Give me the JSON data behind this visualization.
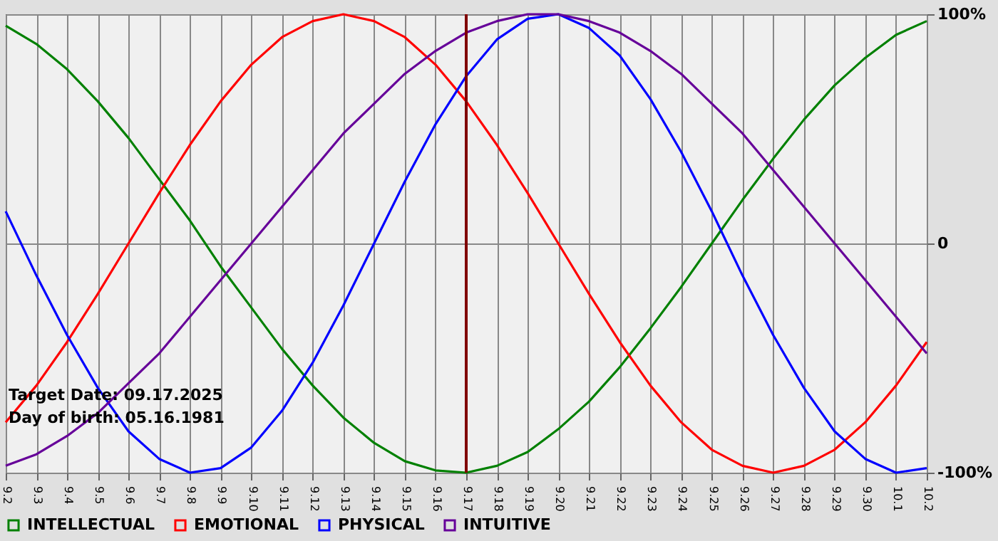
{
  "chart_data": {
    "type": "line",
    "categories": [
      "9.2",
      "9.3",
      "9.4",
      "9.5",
      "9.6",
      "9.7",
      "9.8",
      "9.9",
      "9.10",
      "9.11",
      "9.12",
      "9.13",
      "9.14",
      "9.15",
      "9.16",
      "9.17",
      "9.18",
      "9.19",
      "9.20",
      "9.21",
      "9.22",
      "9.23",
      "9.24",
      "9.25",
      "9.26",
      "9.27",
      "9.28",
      "9.29",
      "9.30",
      "10.1",
      "10.2"
    ],
    "series": [
      {
        "name": "INTELLECTUAL",
        "color": "#008000",
        "values": [
          95,
          87,
          76,
          62,
          46,
          28,
          10,
          -10,
          -28,
          -46,
          -62,
          -76,
          -87,
          -95,
          -99,
          -100,
          -97,
          -91,
          -81,
          -69,
          -54,
          -37,
          -19,
          0,
          19,
          37,
          54,
          69,
          81,
          91,
          97
        ]
      },
      {
        "name": "EMOTIONAL",
        "color": "#ff0000",
        "values": [
          -78,
          -62,
          -43,
          -22,
          0,
          22,
          43,
          62,
          78,
          90,
          97,
          100,
          97,
          90,
          78,
          62,
          43,
          22,
          0,
          -22,
          -43,
          -62,
          -78,
          -90,
          -97,
          -100,
          -97,
          -90,
          -78,
          -62,
          -43
        ]
      },
      {
        "name": "PHYSICAL",
        "color": "#0000ff",
        "values": [
          14,
          -14,
          -40,
          -63,
          -82,
          -94,
          -100,
          -98,
          -89,
          -73,
          -52,
          -27,
          0,
          27,
          52,
          73,
          89,
          98,
          100,
          94,
          82,
          63,
          40,
          14,
          -14,
          -40,
          -63,
          -82,
          -94,
          -100,
          -98
        ]
      },
      {
        "name": "INTUITIVE",
        "color": "#660099",
        "values": [
          -97,
          -92,
          -84,
          -74,
          -61,
          -48,
          -32,
          -16,
          0,
          16,
          32,
          48,
          61,
          74,
          84,
          92,
          97,
          100,
          100,
          97,
          92,
          84,
          74,
          61,
          48,
          32,
          16,
          0,
          -16,
          -32,
          -48
        ]
      }
    ],
    "ylim": [
      -100,
      100
    ],
    "yticks": [
      {
        "value": -100,
        "label": "-100%"
      },
      0,
      {
        "value": 100,
        "label": "100%"
      }
    ],
    "ref_lines": [
      {
        "axis": "x",
        "value": "9.17",
        "color": "#800000"
      }
    ],
    "annotations": [
      "Target Date: 09.17.2025",
      "Day of birth: 05.16.1981"
    ],
    "grid": true,
    "legend": "bottom"
  }
}
